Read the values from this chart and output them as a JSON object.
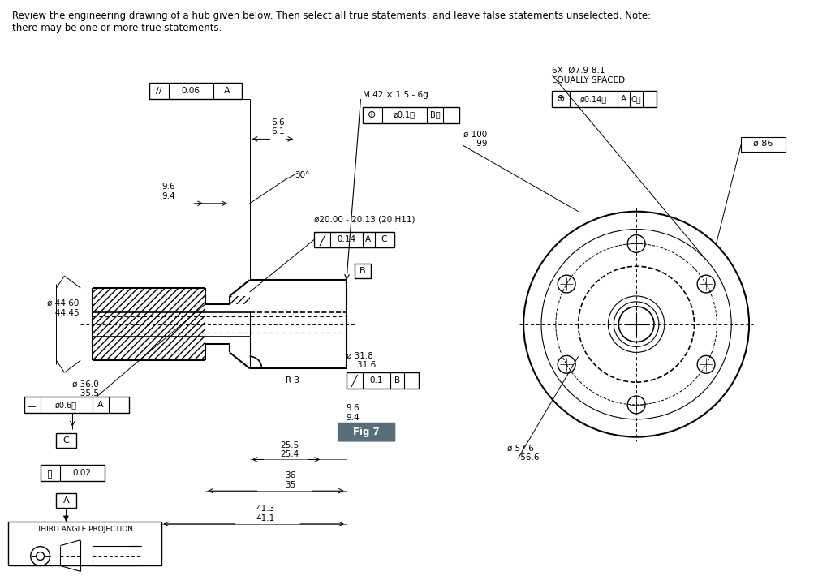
{
  "title_text": "Review the engineering drawing of a hub given below. Then select all true statements, and leave false statements unselected. Note:\nthere may be one or more true statements.",
  "bg_color": "#ffffff",
  "line_color": "#000000",
  "hatch_color": "#000000",
  "fig7_bg": "#5a6e7a",
  "fig7_text_color": "#ffffff",
  "annotations": {
    "parallelism": "// | 0.06 | A",
    "dim_6_6": "6.6\n6.1",
    "dim_30": "30°",
    "dim_9_6": "9.6\n9.4",
    "dia_44_60": "ø 44.60\n  44.45",
    "dia_36_0": "ø 36.0\n  35.5",
    "perpendicularity": "⊥ | ø0.6Ⓜ | A",
    "datum_c": "C",
    "datum_a": "A",
    "flatness": "▯ | 0.02",
    "third_angle": "THIRD ANGLE PROJECTION",
    "thread_note": "M 42 × 1.5 - 6g",
    "thread_tol": "⊕ | ø0.1Ⓜ | BⓂ",
    "dia_100_99": "ø 100\n    99",
    "bore_dim": "ø20.00 - 20.13 (20 H11)",
    "bore_tol": "⁄ | 0.14 | A | C",
    "datum_b": "B",
    "dia_31_8": "ø 31.8\n    31.6",
    "tol_0_1_b": "⁄ | 0.1 | B",
    "r3": "R 3",
    "dim_9_6_2": "9.6\n9.4",
    "fig7": "Fig 7",
    "dia_25_5": "25.5\n25.4",
    "dim_36": "36\n35",
    "dim_41_3": "41.3\n41.1",
    "hole_note": "6X Ø7.9-8.1\nEQUALLY SPACED",
    "hole_tol": "⊕ | ø0.14Ⓜ | A | CⓂ",
    "dia_86": "ø 86",
    "dia_57_6": "ø 57.6\n    56.6"
  }
}
